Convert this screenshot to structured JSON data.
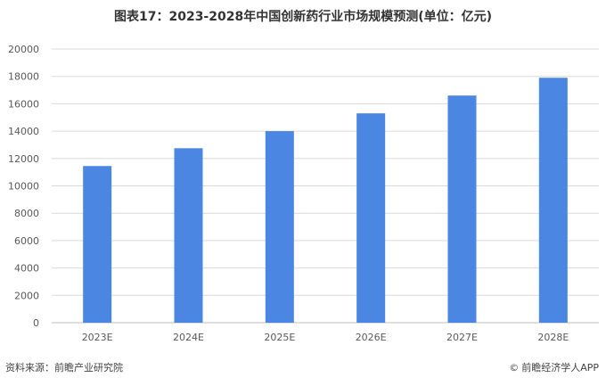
{
  "title": "图表17：2023-2028年中国创新药行业市场规模预测(单位：亿元)",
  "footer": {
    "source": "资料来源：前瞻产业研究院",
    "credit": "前瞻经济学人APP",
    "credit_icon": "copyright-icon"
  },
  "colors": {
    "bar": "#4A86E2",
    "grid": "#D9D9D9",
    "axis": "#BFBFBF",
    "text": "#595959"
  },
  "chart_data": {
    "type": "bar",
    "categories": [
      "2023E",
      "2024E",
      "2025E",
      "2026E",
      "2027E",
      "2028E"
    ],
    "values": [
      11450,
      12750,
      14000,
      15300,
      16600,
      17900
    ],
    "ylim": [
      0,
      20000
    ],
    "yticks": [
      0,
      2000,
      4000,
      6000,
      8000,
      10000,
      12000,
      14000,
      16000,
      18000,
      20000
    ],
    "grid": true,
    "legend": "none"
  }
}
